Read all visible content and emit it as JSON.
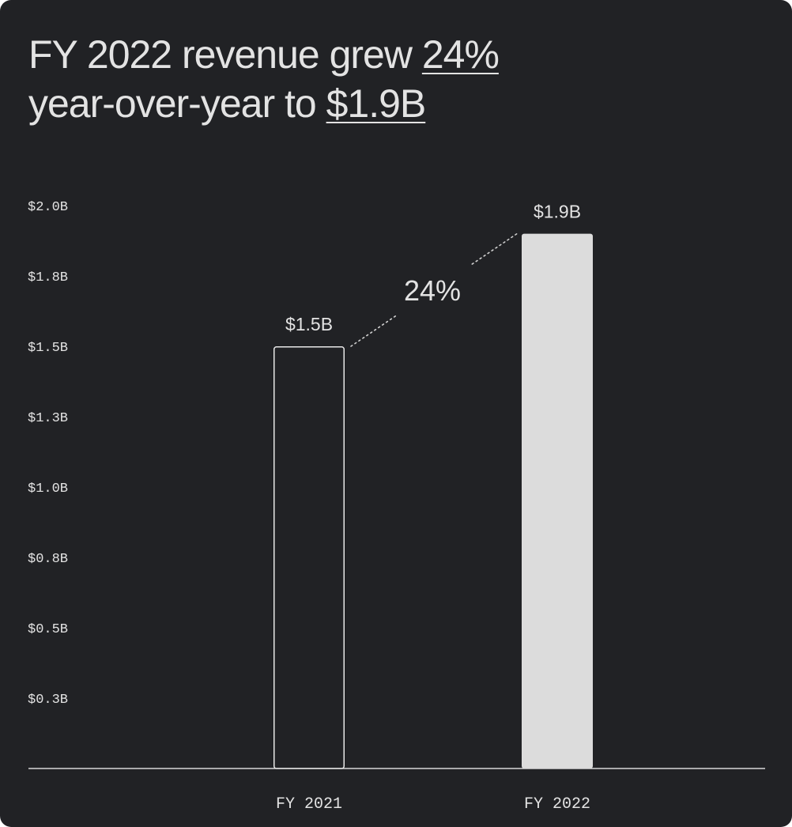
{
  "headline": {
    "line1_prefix": "FY 2022 revenue grew ",
    "growth": "24%",
    "line2_prefix": "year-over-year to ",
    "total": "$1.9B"
  },
  "colors": {
    "background": "#212225",
    "text": "#e3e3e3",
    "bar_fill_current": "#dcdcdc",
    "bar_outline_prior": "#e8e8e8",
    "axis": "#d8d8d8",
    "connector": "#cfcfcf"
  },
  "chart_data": {
    "type": "bar",
    "title": "",
    "xlabel": "",
    "ylabel": "",
    "categories": [
      "FY 2021",
      "FY 2022"
    ],
    "values": [
      1.5,
      1.9
    ],
    "value_labels": [
      "$1.5B",
      "$1.9B"
    ],
    "bar_styles": [
      "outline",
      "filled"
    ],
    "yticks": [
      {
        "label": "$2.0B",
        "value": 2.0
      },
      {
        "label": "$1.8B",
        "value": 1.75
      },
      {
        "label": "$1.5B",
        "value": 1.5
      },
      {
        "label": "$1.3B",
        "value": 1.25
      },
      {
        "label": "$1.0B",
        "value": 1.0
      },
      {
        "label": "$0.8B",
        "value": 0.75
      },
      {
        "label": "$0.5B",
        "value": 0.5
      },
      {
        "label": "$0.3B",
        "value": 0.25
      }
    ],
    "ylim": [
      0,
      2.0
    ],
    "grid": false,
    "legend": "none",
    "annotation": {
      "text": "24%",
      "from": "FY 2021",
      "to": "FY 2022",
      "style": "dotted-connector"
    }
  }
}
